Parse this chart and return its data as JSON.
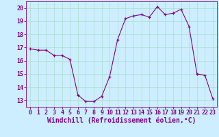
{
  "hours": [
    0,
    1,
    2,
    3,
    4,
    5,
    6,
    7,
    8,
    9,
    10,
    11,
    12,
    13,
    14,
    15,
    16,
    17,
    18,
    19,
    20,
    21,
    22,
    23
  ],
  "values": [
    16.9,
    16.8,
    16.8,
    16.4,
    16.4,
    16.1,
    13.4,
    12.9,
    12.9,
    13.3,
    14.8,
    17.6,
    19.2,
    19.4,
    19.5,
    19.3,
    20.1,
    19.5,
    19.6,
    19.9,
    18.6,
    15.0,
    14.9,
    13.1
  ],
  "line_color": "#800080",
  "marker": "+",
  "marker_color": "#800080",
  "bg_color": "#cceeff",
  "grid_color": "#aaddcc",
  "xlabel": "Windchill (Refroidissement éolien,°C)",
  "xlabel_color": "#800080",
  "tick_color": "#800080",
  "ylim": [
    12.5,
    20.5
  ],
  "xlim": [
    -0.5,
    23.5
  ],
  "xticks": [
    0,
    1,
    2,
    3,
    4,
    5,
    6,
    7,
    8,
    9,
    10,
    11,
    12,
    13,
    14,
    15,
    16,
    17,
    18,
    19,
    20,
    21,
    22,
    23
  ],
  "yticks": [
    13,
    14,
    15,
    16,
    17,
    18,
    19,
    20
  ],
  "tick_fontsize": 6,
  "xlabel_fontsize": 7
}
